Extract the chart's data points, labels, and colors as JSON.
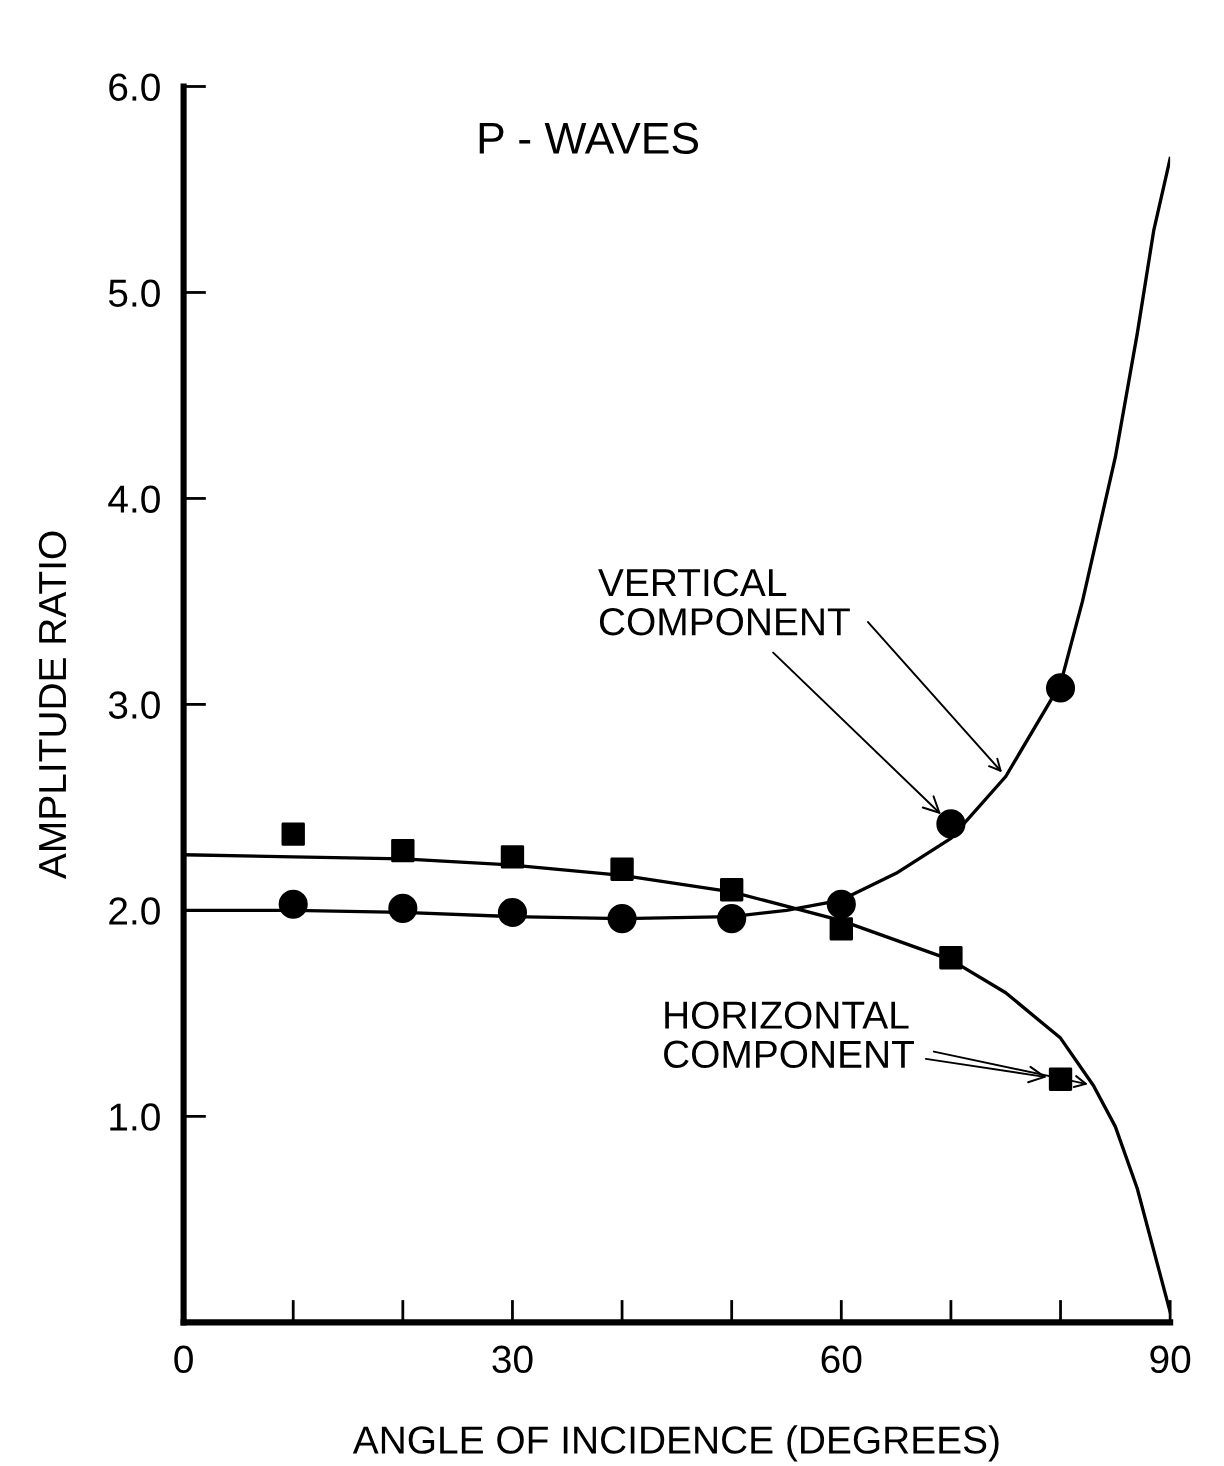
{
  "chart_data": {
    "type": "scatter",
    "xlabel": "ANGLE OF INCIDENCE (DEGREES)",
    "ylabel": "AMPLITUDE RATIO",
    "annotations": [
      "P - WAVES",
      {
        "text": "VERTICAL\nCOMPONENT",
        "x": 70,
        "y": 2.42
      },
      {
        "text": "HORIZONTAL\nCOMPONENT",
        "x": 80,
        "y": 1.18
      }
    ],
    "series": [
      {
        "marker": "circle",
        "color": "#000000",
        "x": [
          10,
          20,
          30,
          40,
          50,
          60,
          70,
          80
        ],
        "values": [
          2.03,
          2.01,
          1.99,
          1.96,
          1.96,
          2.03,
          2.42,
          3.08
        ]
      },
      {
        "type": "line",
        "line_style": "solid",
        "color": "#000000",
        "x": [
          0,
          10,
          20,
          30,
          40,
          50,
          55,
          60,
          65,
          70,
          75,
          80,
          82,
          85,
          87,
          88.5,
          90
        ],
        "values": [
          2.0,
          2.0,
          1.99,
          1.97,
          1.96,
          1.97,
          2.0,
          2.05,
          2.18,
          2.35,
          2.65,
          3.1,
          3.5,
          4.2,
          4.8,
          5.3,
          5.65
        ]
      },
      {
        "marker": "square",
        "color": "#000000",
        "x": [
          10,
          20,
          30,
          40,
          50,
          60,
          70,
          80
        ],
        "values": [
          2.37,
          2.29,
          2.26,
          2.2,
          2.1,
          1.91,
          1.77,
          1.18
        ]
      },
      {
        "type": "line",
        "line_style": "solid",
        "color": "#000000",
        "x": [
          0,
          10,
          20,
          30,
          40,
          50,
          60,
          70,
          75,
          80,
          83,
          85,
          87,
          89,
          90
        ],
        "values": [
          2.27,
          2.26,
          2.25,
          2.22,
          2.17,
          2.09,
          1.95,
          1.76,
          1.6,
          1.38,
          1.15,
          0.95,
          0.65,
          0.25,
          0.05
        ]
      }
    ],
    "xlim": [
      0,
      90
    ],
    "ylim": [
      0,
      6
    ],
    "xticks": [
      0,
      {
        "value": 10,
        "label": null
      },
      {
        "value": 20,
        "label": null
      },
      30,
      {
        "value": 40,
        "label": null
      },
      {
        "value": 50,
        "label": null
      },
      60,
      {
        "value": 70,
        "label": null
      },
      {
        "value": 80,
        "label": null
      },
      90
    ],
    "yticks": [
      {
        "value": 1,
        "label": "1.0"
      },
      {
        "value": 2,
        "label": "2.0"
      },
      {
        "value": 3,
        "label": "3.0"
      },
      {
        "value": 4,
        "label": "4.0"
      },
      {
        "value": 5,
        "label": "5.0"
      },
      {
        "value": 6,
        "label": "6.0"
      }
    ],
    "grid": false,
    "legend": false
  }
}
